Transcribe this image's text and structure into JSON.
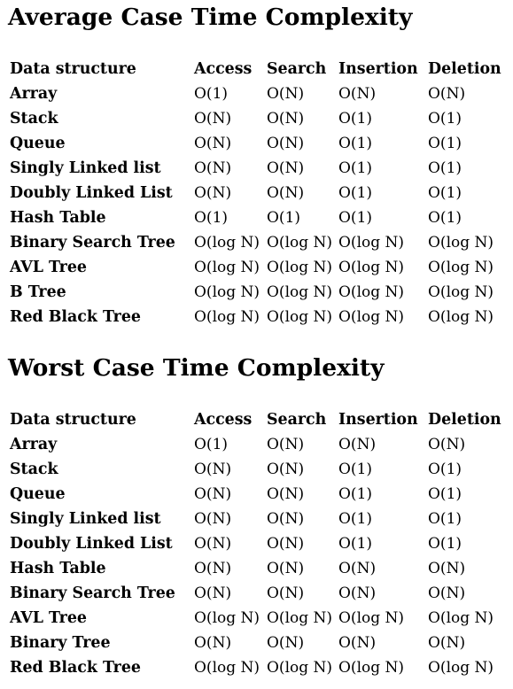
{
  "average": {
    "title": "Average Case Time Complexity",
    "headers": [
      "Data structure",
      "Access",
      "Search",
      "Insertion",
      "Deletion"
    ],
    "rows": [
      {
        "name": "Array",
        "access": "O(1)",
        "search": "O(N)",
        "insertion": "O(N)",
        "deletion": "O(N)"
      },
      {
        "name": "Stack",
        "access": "O(N)",
        "search": "O(N)",
        "insertion": "O(1)",
        "deletion": "O(1)"
      },
      {
        "name": "Queue",
        "access": "O(N)",
        "search": "O(N)",
        "insertion": "O(1)",
        "deletion": "O(1)"
      },
      {
        "name": "Singly Linked list",
        "access": "O(N)",
        "search": "O(N)",
        "insertion": "O(1)",
        "deletion": "O(1)"
      },
      {
        "name": "Doubly Linked List",
        "access": "O(N)",
        "search": "O(N)",
        "insertion": "O(1)",
        "deletion": "O(1)"
      },
      {
        "name": "Hash Table",
        "access": "O(1)",
        "search": "O(1)",
        "insertion": "O(1)",
        "deletion": "O(1)"
      },
      {
        "name": "Binary Search Tree",
        "access": "O(log N)",
        "search": "O(log N)",
        "insertion": "O(log N)",
        "deletion": "O(log N)"
      },
      {
        "name": "AVL Tree",
        "access": "O(log N)",
        "search": "O(log N)",
        "insertion": "O(log N)",
        "deletion": "O(log N)"
      },
      {
        "name": "B Tree",
        "access": "O(log N)",
        "search": "O(log N)",
        "insertion": "O(log N)",
        "deletion": "O(log N)"
      },
      {
        "name": "Red Black Tree",
        "access": "O(log N)",
        "search": "O(log N)",
        "insertion": "O(log N)",
        "deletion": "O(log N)"
      }
    ]
  },
  "worst": {
    "title": "Worst Case Time Complexity",
    "headers": [
      "Data structure",
      "Access",
      "Search",
      "Insertion",
      "Deletion"
    ],
    "rows": [
      {
        "name": "Array",
        "access": "O(1)",
        "search": "O(N)",
        "insertion": "O(N)",
        "deletion": "O(N)"
      },
      {
        "name": "Stack",
        "access": "O(N)",
        "search": "O(N)",
        "insertion": "O(1)",
        "deletion": "O(1)"
      },
      {
        "name": "Queue",
        "access": "O(N)",
        "search": "O(N)",
        "insertion": "O(1)",
        "deletion": "O(1)"
      },
      {
        "name": "Singly Linked list",
        "access": "O(N)",
        "search": "O(N)",
        "insertion": "O(1)",
        "deletion": "O(1)"
      },
      {
        "name": "Doubly Linked List",
        "access": "O(N)",
        "search": "O(N)",
        "insertion": "O(1)",
        "deletion": "O(1)"
      },
      {
        "name": "Hash Table",
        "access": "O(N)",
        "search": "O(N)",
        "insertion": "O(N)",
        "deletion": "O(N)"
      },
      {
        "name": "Binary Search Tree",
        "access": "O(N)",
        "search": "O(N)",
        "insertion": "O(N)",
        "deletion": "O(N)"
      },
      {
        "name": "AVL Tree",
        "access": "O(log N)",
        "search": "O(log N)",
        "insertion": "O(log N)",
        "deletion": "O(log N)"
      },
      {
        "name": "Binary Tree",
        "access": "O(N)",
        "search": "O(N)",
        "insertion": "O(N)",
        "deletion": "O(N)"
      },
      {
        "name": "Red Black Tree",
        "access": "O(log N)",
        "search": "O(log N)",
        "insertion": "O(log N)",
        "deletion": "O(log N)"
      }
    ]
  }
}
